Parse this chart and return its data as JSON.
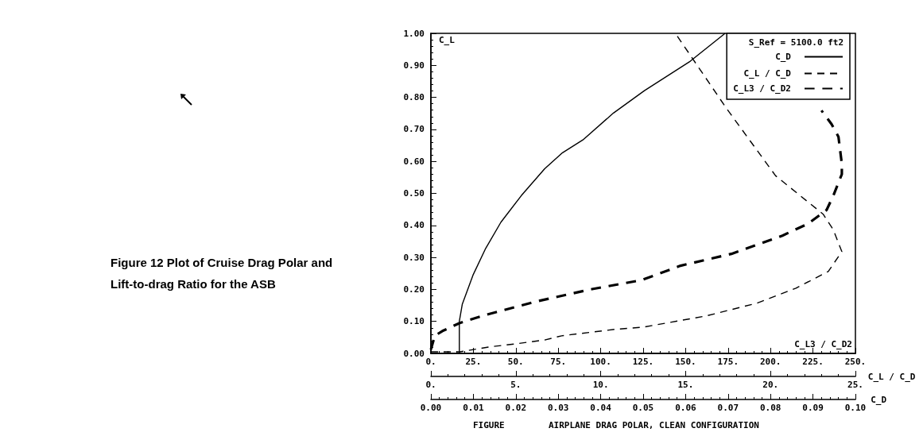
{
  "chart_data": [
    {
      "type": "line",
      "title": "Figure 12 Plot of Cruise Drag Polar and Lift-to-drag Ratio for the ASB",
      "annotations": [
        "FIGURE",
        "AIRPLANE DRAG POLAR, CLEAN CONFIGURATION"
      ],
      "ylabel": "C_L",
      "xlabel": "C_L3 / C_D2",
      "x2label": "C_L / C_D",
      "legend_title": "S_Ref = 5100.0 ft2",
      "legend": "top right",
      "grid": false,
      "marker": "none",
      "ylim": [
        0,
        1
      ],
      "yticks": [
        {
          "value": 0,
          "label": "0.00"
        },
        {
          "value": 0.1,
          "label": "0.10"
        },
        {
          "value": 0.2,
          "label": "0.20"
        },
        {
          "value": 0.3,
          "label": "0.30"
        },
        {
          "value": 0.4,
          "label": "0.40"
        },
        {
          "value": 0.5,
          "label": "0.50"
        },
        {
          "value": 0.6,
          "label": "0.60"
        },
        {
          "value": 0.7,
          "label": "0.70"
        },
        {
          "value": 0.8,
          "label": "0.80"
        },
        {
          "value": 0.9,
          "label": "0.90"
        },
        {
          "value": 1,
          "label": "1.00"
        }
      ],
      "xlim": [
        0,
        250
      ],
      "xticks": [
        {
          "value": 0,
          "label": "0."
        },
        {
          "value": 25,
          "label": "25."
        },
        {
          "value": 50,
          "label": "50."
        },
        {
          "value": 75,
          "label": "75."
        },
        {
          "value": 100,
          "label": "100."
        },
        {
          "value": 125,
          "label": "125."
        },
        {
          "value": 150,
          "label": "150."
        },
        {
          "value": 175,
          "label": "175."
        },
        {
          "value": 200,
          "label": "200."
        },
        {
          "value": 225,
          "label": "225."
        },
        {
          "value": 250,
          "label": "250."
        }
      ],
      "x2lim": [
        0,
        25
      ],
      "x2ticks": [
        {
          "value": 0,
          "label": "0."
        },
        {
          "value": 5,
          "label": "5."
        },
        {
          "value": 10,
          "label": "10."
        },
        {
          "value": 15,
          "label": "15."
        },
        {
          "value": 20,
          "label": "20."
        },
        {
          "value": 25,
          "label": "25."
        }
      ],
      "series": [
        {
          "name": "C_L / C_D",
          "color": "#000000",
          "line_style": "dashed",
          "axis": "x2",
          "x": [
            0,
            1.7,
            3.4,
            5.0,
            6.7,
            7.7,
            10.8,
            12.5,
            16.2,
            19.2,
            21.5,
            23.4,
            24.2,
            23.7,
            23.1,
            20.3,
            17.4,
            14.4
          ],
          "values": [
            0.005,
            0.005,
            0.02,
            0.03,
            0.042,
            0.055,
            0.075,
            0.082,
            0.117,
            0.157,
            0.204,
            0.256,
            0.318,
            0.386,
            0.435,
            0.555,
            0.766,
            1.0
          ]
        },
        {
          "name": "C_L3 / C_D2",
          "color": "#000000",
          "line_style": "dashed",
          "x": [
            0,
            2.3,
            6.8,
            17,
            32,
            62,
            93,
            124,
            147,
            177,
            207,
            222,
            233,
            237,
            242,
            242,
            240,
            236,
            230
          ],
          "values": [
            0.012,
            0.055,
            0.07,
            0.095,
            0.12,
            0.162,
            0.199,
            0.229,
            0.274,
            0.311,
            0.368,
            0.405,
            0.448,
            0.493,
            0.56,
            0.592,
            0.677,
            0.716,
            0.759
          ]
        }
      ]
    },
    {
      "type": "line",
      "xlabel": "C_D",
      "legend": "top right",
      "grid": false,
      "marker": "none",
      "tick_labels": "x",
      "ylim": [
        0,
        1
      ],
      "xlim": [
        0,
        0.1
      ],
      "xticks": [
        {
          "value": 0,
          "label": "0.00"
        },
        {
          "value": 0.01,
          "label": "0.01"
        },
        {
          "value": 0.02,
          "label": "0.02"
        },
        {
          "value": 0.03,
          "label": "0.03"
        },
        {
          "value": 0.04,
          "label": "0.04"
        },
        {
          "value": 0.05,
          "label": "0.05"
        },
        {
          "value": 0.06,
          "label": "0.06"
        },
        {
          "value": 0.07,
          "label": "0.07"
        },
        {
          "value": 0.08,
          "label": "0.08"
        },
        {
          "value": 0.09,
          "label": "0.09"
        },
        {
          "value": 0.1,
          "label": "0.10"
        }
      ],
      "series": [
        {
          "name": "C_D",
          "color": "#000000",
          "line_style": "solid",
          "x": [
            0.0067,
            0.0067,
            0.0074,
            0.0099,
            0.0129,
            0.0165,
            0.0213,
            0.0268,
            0.031,
            0.0358,
            0.043,
            0.0503,
            0.0611,
            0.0693
          ],
          "values": [
            0,
            0.1,
            0.154,
            0.244,
            0.328,
            0.41,
            0.493,
            0.577,
            0.627,
            0.667,
            0.751,
            0.821,
            0.913,
            1.0
          ]
        }
      ]
    }
  ]
}
